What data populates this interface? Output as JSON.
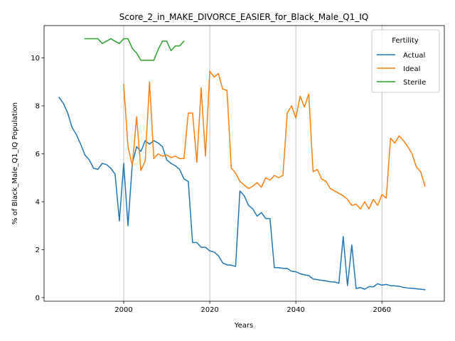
{
  "chart_data": {
    "type": "line",
    "title": "Score_2_in_MAKE_DIVORCE_EASIER_for_Black_Male_Q1_IQ",
    "xlabel": "Years",
    "ylabel": "% of Black_Male_Q1_IQ Population",
    "xlim": [
      1981.5,
      2074.5
    ],
    "ylim": [
      -0.15,
      11.35
    ],
    "xticks": [
      2000,
      2020,
      2040,
      2060
    ],
    "yticks": [
      0,
      2,
      4,
      6,
      8,
      10
    ],
    "grid": "vertical-major",
    "legend": {
      "title": "Fertility",
      "position": "top-right"
    },
    "colors": {
      "Actual": "#1f77b4",
      "Ideal": "#ff7f0e",
      "Sterile": "#2ca02c"
    },
    "series": [
      {
        "name": "Actual",
        "x": [
          1985,
          1986,
          1987,
          1988,
          1989,
          1990,
          1991,
          1992,
          1993,
          1994,
          1995,
          1996,
          1997,
          1998,
          1999,
          2000,
          2001,
          2002,
          2003,
          2004,
          2005,
          2006,
          2007,
          2008,
          2009,
          2010,
          2011,
          2012,
          2013,
          2014,
          2015,
          2016,
          2017,
          2018,
          2019,
          2020,
          2021,
          2022,
          2023,
          2024,
          2025,
          2026,
          2027,
          2028,
          2029,
          2030,
          2031,
          2032,
          2033,
          2034,
          2035,
          2036,
          2037,
          2038,
          2039,
          2040,
          2041,
          2042,
          2043,
          2044,
          2045,
          2046,
          2047,
          2048,
          2049,
          2050,
          2051,
          2052,
          2053,
          2054,
          2055,
          2056,
          2057,
          2058,
          2059,
          2060,
          2061,
          2062,
          2063,
          2064,
          2065,
          2066,
          2067,
          2068,
          2069,
          2070
        ],
        "values": [
          8.35,
          8.1,
          7.7,
          7.1,
          6.8,
          6.4,
          5.95,
          5.75,
          5.4,
          5.35,
          5.6,
          5.55,
          5.4,
          5.15,
          3.2,
          5.6,
          3.0,
          5.6,
          6.3,
          6.1,
          6.55,
          6.4,
          6.55,
          6.45,
          6.3,
          5.75,
          5.6,
          5.5,
          5.35,
          4.95,
          4.85,
          2.3,
          2.3,
          2.1,
          2.1,
          1.95,
          1.9,
          1.75,
          1.45,
          1.37,
          1.35,
          1.3,
          4.45,
          4.25,
          3.85,
          3.7,
          3.4,
          3.55,
          3.3,
          3.3,
          1.25,
          1.25,
          1.22,
          1.22,
          1.1,
          1.08,
          1.0,
          0.95,
          0.92,
          0.78,
          0.75,
          0.72,
          0.7,
          0.66,
          0.65,
          0.6,
          2.55,
          0.5,
          2.2,
          0.38,
          0.42,
          0.35,
          0.46,
          0.45,
          0.58,
          0.52,
          0.55,
          0.5,
          0.49,
          0.47,
          0.43,
          0.4,
          0.39,
          0.37,
          0.35,
          0.33
        ]
      },
      {
        "name": "Ideal",
        "x": [
          2000,
          2001,
          2002,
          2003,
          2004,
          2005,
          2006,
          2007,
          2008,
          2009,
          2010,
          2011,
          2012,
          2013,
          2014,
          2015,
          2016,
          2017,
          2018,
          2019,
          2020,
          2021,
          2022,
          2023,
          2024,
          2025,
          2026,
          2027,
          2028,
          2029,
          2030,
          2031,
          2032,
          2033,
          2034,
          2035,
          2036,
          2037,
          2038,
          2039,
          2040,
          2041,
          2042,
          2043,
          2044,
          2045,
          2046,
          2047,
          2048,
          2049,
          2050,
          2051,
          2052,
          2053,
          2054,
          2055,
          2056,
          2057,
          2058,
          2059,
          2060,
          2061,
          2062,
          2063,
          2064,
          2065,
          2066,
          2067,
          2068,
          2069,
          2070
        ],
        "values": [
          8.9,
          6.3,
          5.5,
          7.55,
          5.3,
          5.7,
          9.0,
          5.8,
          6.0,
          5.9,
          5.95,
          5.85,
          5.9,
          5.8,
          5.8,
          7.7,
          7.7,
          5.65,
          8.75,
          5.9,
          9.45,
          9.2,
          9.35,
          8.7,
          8.65,
          5.4,
          5.2,
          4.85,
          4.7,
          4.55,
          4.65,
          4.8,
          4.6,
          5.0,
          4.9,
          5.1,
          5.0,
          5.1,
          7.7,
          8.0,
          7.5,
          8.4,
          7.95,
          8.5,
          5.25,
          5.35,
          4.95,
          4.85,
          4.55,
          4.45,
          4.35,
          4.25,
          4.1,
          3.85,
          3.9,
          3.7,
          4.0,
          3.7,
          4.1,
          3.85,
          4.3,
          4.15,
          6.65,
          6.45,
          6.75,
          6.55,
          6.3,
          6.0,
          5.45,
          5.25,
          4.65
        ]
      },
      {
        "name": "Sterile",
        "x": [
          1991,
          1992,
          1993,
          1994,
          1995,
          1996,
          1997,
          1998,
          1999,
          2000,
          2001,
          2002,
          2003,
          2004,
          2005,
          2006,
          2007,
          2008,
          2009,
          2010,
          2011,
          2012,
          2013,
          2014
        ],
        "values": [
          10.8,
          10.8,
          10.8,
          10.8,
          10.6,
          10.7,
          10.8,
          10.7,
          10.6,
          10.8,
          10.8,
          10.4,
          10.2,
          9.9,
          9.9,
          9.9,
          9.9,
          10.35,
          10.7,
          10.7,
          10.3,
          10.5,
          10.5,
          10.7
        ]
      }
    ]
  }
}
